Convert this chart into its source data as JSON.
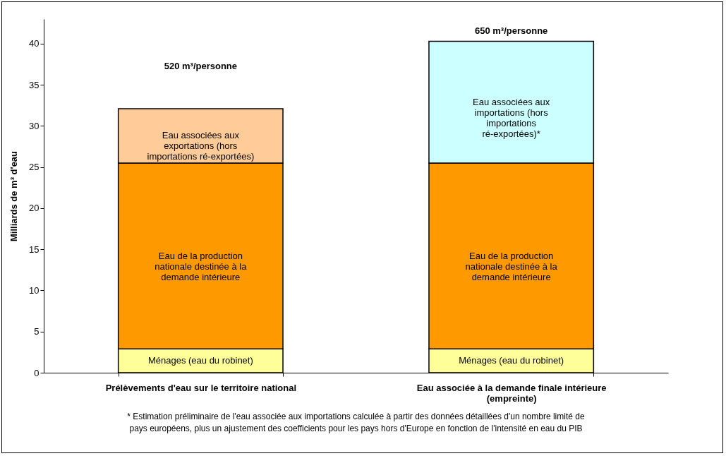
{
  "chart_data": {
    "type": "bar",
    "stacked": true,
    "ylabel": "Milliards de m³ d'eau",
    "categories": [
      "Prélèvements d'eau sur le territoire national",
      "Eau associée à la demande finale intérieure (empreinte)"
    ],
    "series": [
      {
        "name": "Ménages (eau du robinet)",
        "color": "#ffff99",
        "values": [
          2.9,
          2.9
        ]
      },
      {
        "name": "Eau de la production nationale destinée à la demande intérieure",
        "color": "#ff9900",
        "values": [
          22.6,
          22.6
        ]
      },
      {
        "name": "Eau associées aux exportations (hors importations ré-exportées)",
        "color": "#ffcc99",
        "values": [
          6.6,
          null
        ]
      },
      {
        "name": "Eau associées aux importations (hors importations ré-exportées)*",
        "color": "#ccffff",
        "values": [
          null,
          14.8
        ]
      }
    ],
    "ylim": [
      0,
      43
    ],
    "yticks": [
      0,
      5,
      10,
      15,
      20,
      25,
      30,
      35,
      40
    ],
    "annotations": [
      "520 m³/personne",
      "650 m³/personne",
      "* Estimation préliminaire de l'eau associée aux importations calculée à partir des données détaillées d'un nombre limité de pays européens, plus un ajustement des coefficients pour les pays hors d'Europe en fonction de l'intensité en eau du PIB"
    ]
  }
}
